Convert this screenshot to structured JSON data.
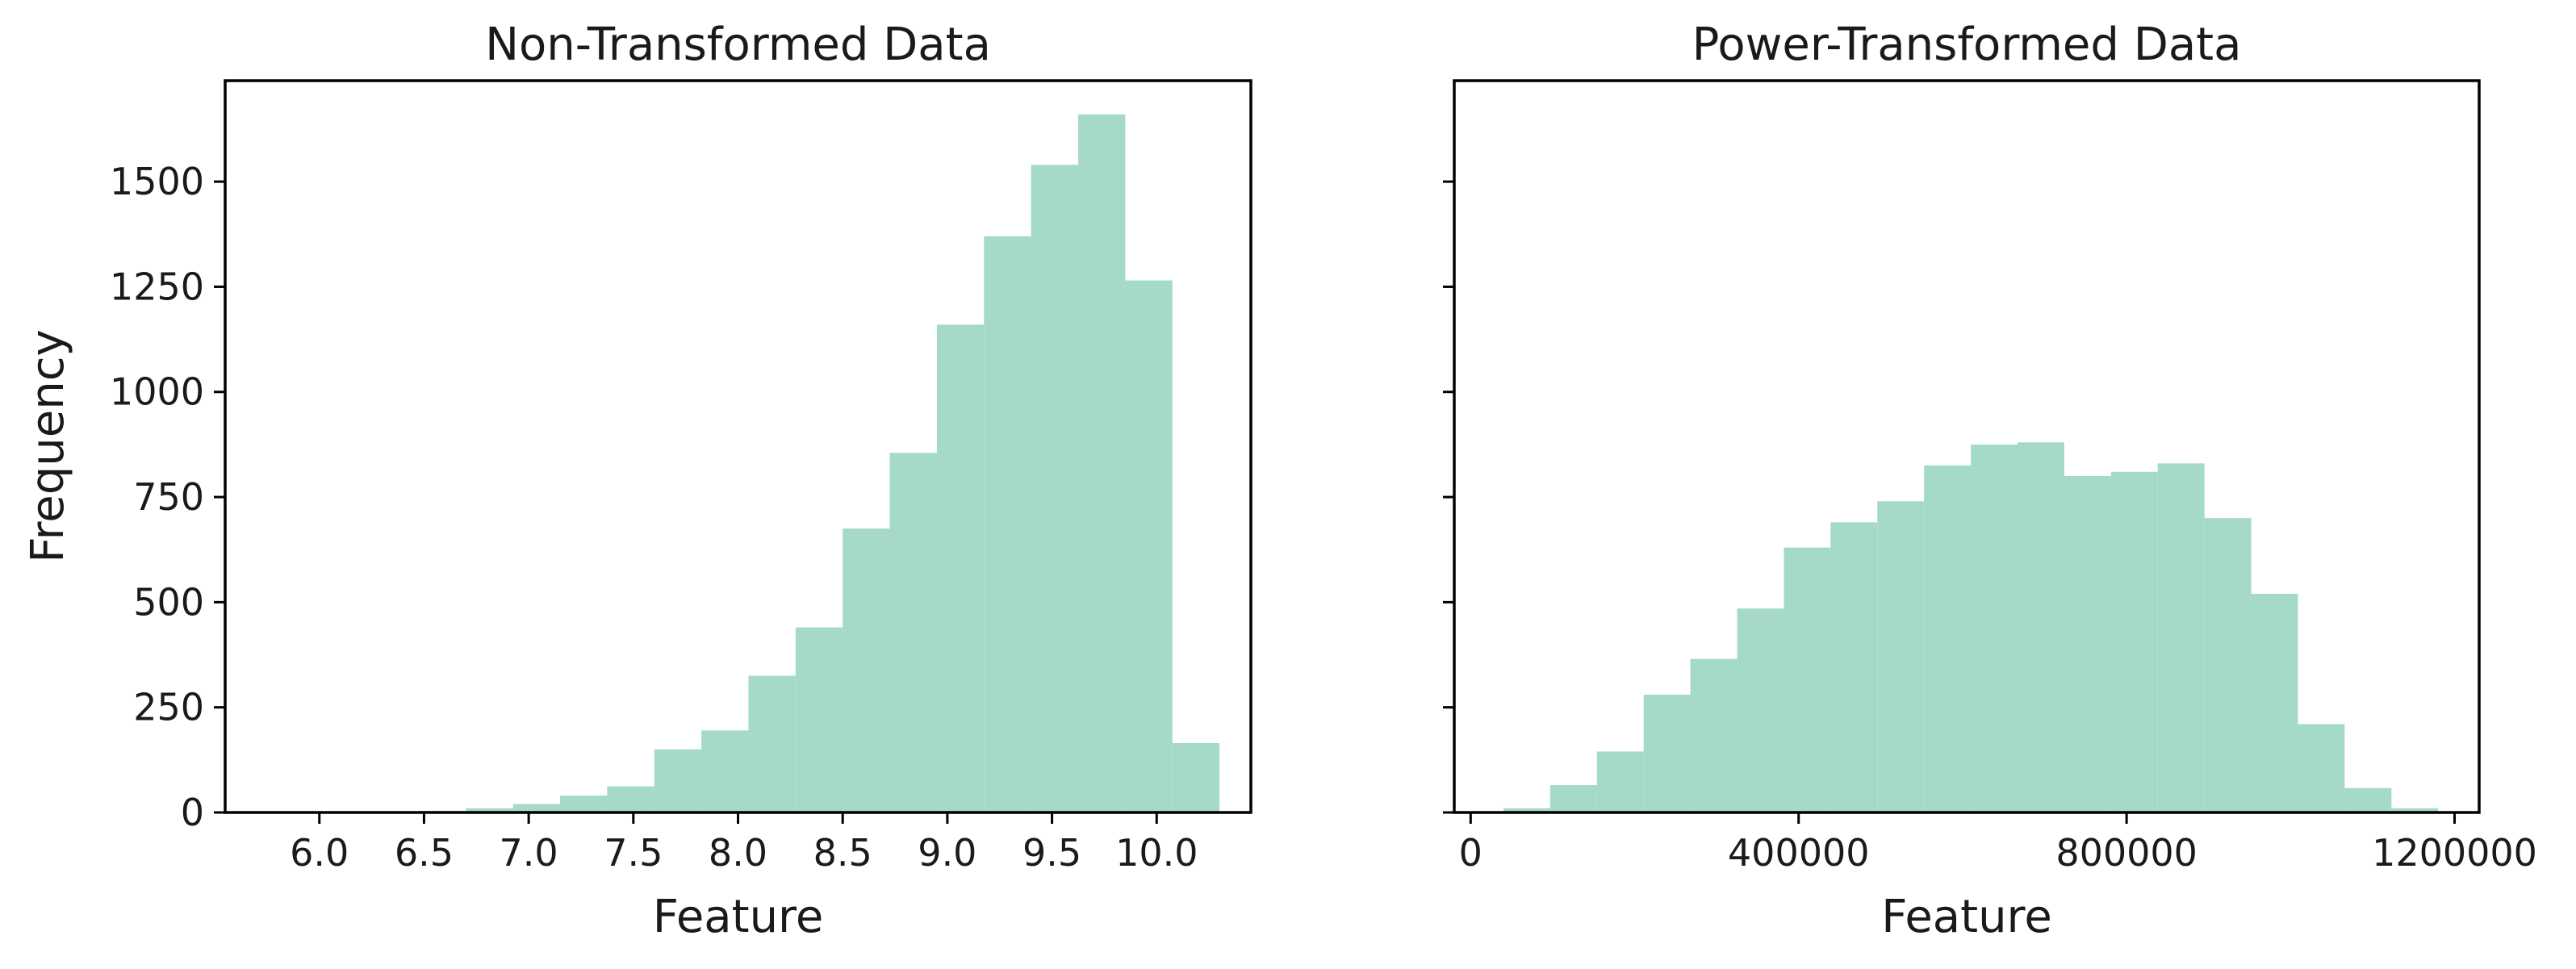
{
  "chart_data": [
    {
      "type": "bar",
      "title": "Non-Transformed Data",
      "xlabel": "Feature",
      "ylabel": "Frequency",
      "xlim": [
        5.55,
        10.45
      ],
      "ylim": [
        0,
        1740
      ],
      "xticks": [
        6.0,
        6.5,
        7.0,
        7.5,
        8.0,
        8.5,
        9.0,
        9.5,
        10.0
      ],
      "xtick_labels": [
        "6.0",
        "6.5",
        "7.0",
        "7.5",
        "8.0",
        "8.5",
        "9.0",
        "9.5",
        "10.0"
      ],
      "yticks": [
        0,
        250,
        500,
        750,
        1000,
        1250,
        1500
      ],
      "ytick_labels": [
        "0",
        "250",
        "500",
        "750",
        "1000",
        "1250",
        "1500"
      ],
      "show_yticklabels": true,
      "bin_edges": [
        5.8,
        6.025,
        6.25,
        6.475,
        6.7,
        6.925,
        7.15,
        7.375,
        7.6,
        7.825,
        8.05,
        8.275,
        8.5,
        8.725,
        8.95,
        9.175,
        9.4,
        9.625,
        9.85,
        10.075,
        10.3
      ],
      "values": [
        1,
        1,
        2,
        4,
        10,
        20,
        40,
        62,
        150,
        195,
        325,
        440,
        675,
        855,
        1160,
        1370,
        1540,
        1660,
        1265,
        165
      ],
      "grid": false,
      "color": "#a5d9c9"
    },
    {
      "type": "bar",
      "title": "Power-Transformed Data",
      "xlabel": "Feature",
      "ylabel": "",
      "xlim": [
        -20000,
        1230000
      ],
      "ylim": [
        0,
        1740
      ],
      "xticks": [
        0,
        400000,
        800000,
        1200000
      ],
      "xtick_labels": [
        "0",
        "400000",
        "800000",
        "1200000"
      ],
      "yticks": [
        0,
        250,
        500,
        750,
        1000,
        1250,
        1500
      ],
      "ytick_labels": [
        "0",
        "250",
        "500",
        "750",
        "1000",
        "1250",
        "1500"
      ],
      "show_yticklabels": false,
      "bin_edges": [
        40000,
        97000,
        154000,
        211000,
        268000,
        325000,
        382000,
        439000,
        496000,
        553000,
        610000,
        667000,
        724000,
        781000,
        838000,
        895000,
        952000,
        1009000,
        1066000,
        1123000,
        1180000
      ],
      "values": [
        10,
        65,
        145,
        280,
        365,
        485,
        630,
        690,
        740,
        825,
        875,
        880,
        800,
        810,
        830,
        700,
        520,
        210,
        58,
        10
      ],
      "grid": false,
      "color": "#a5d9c9"
    }
  ]
}
